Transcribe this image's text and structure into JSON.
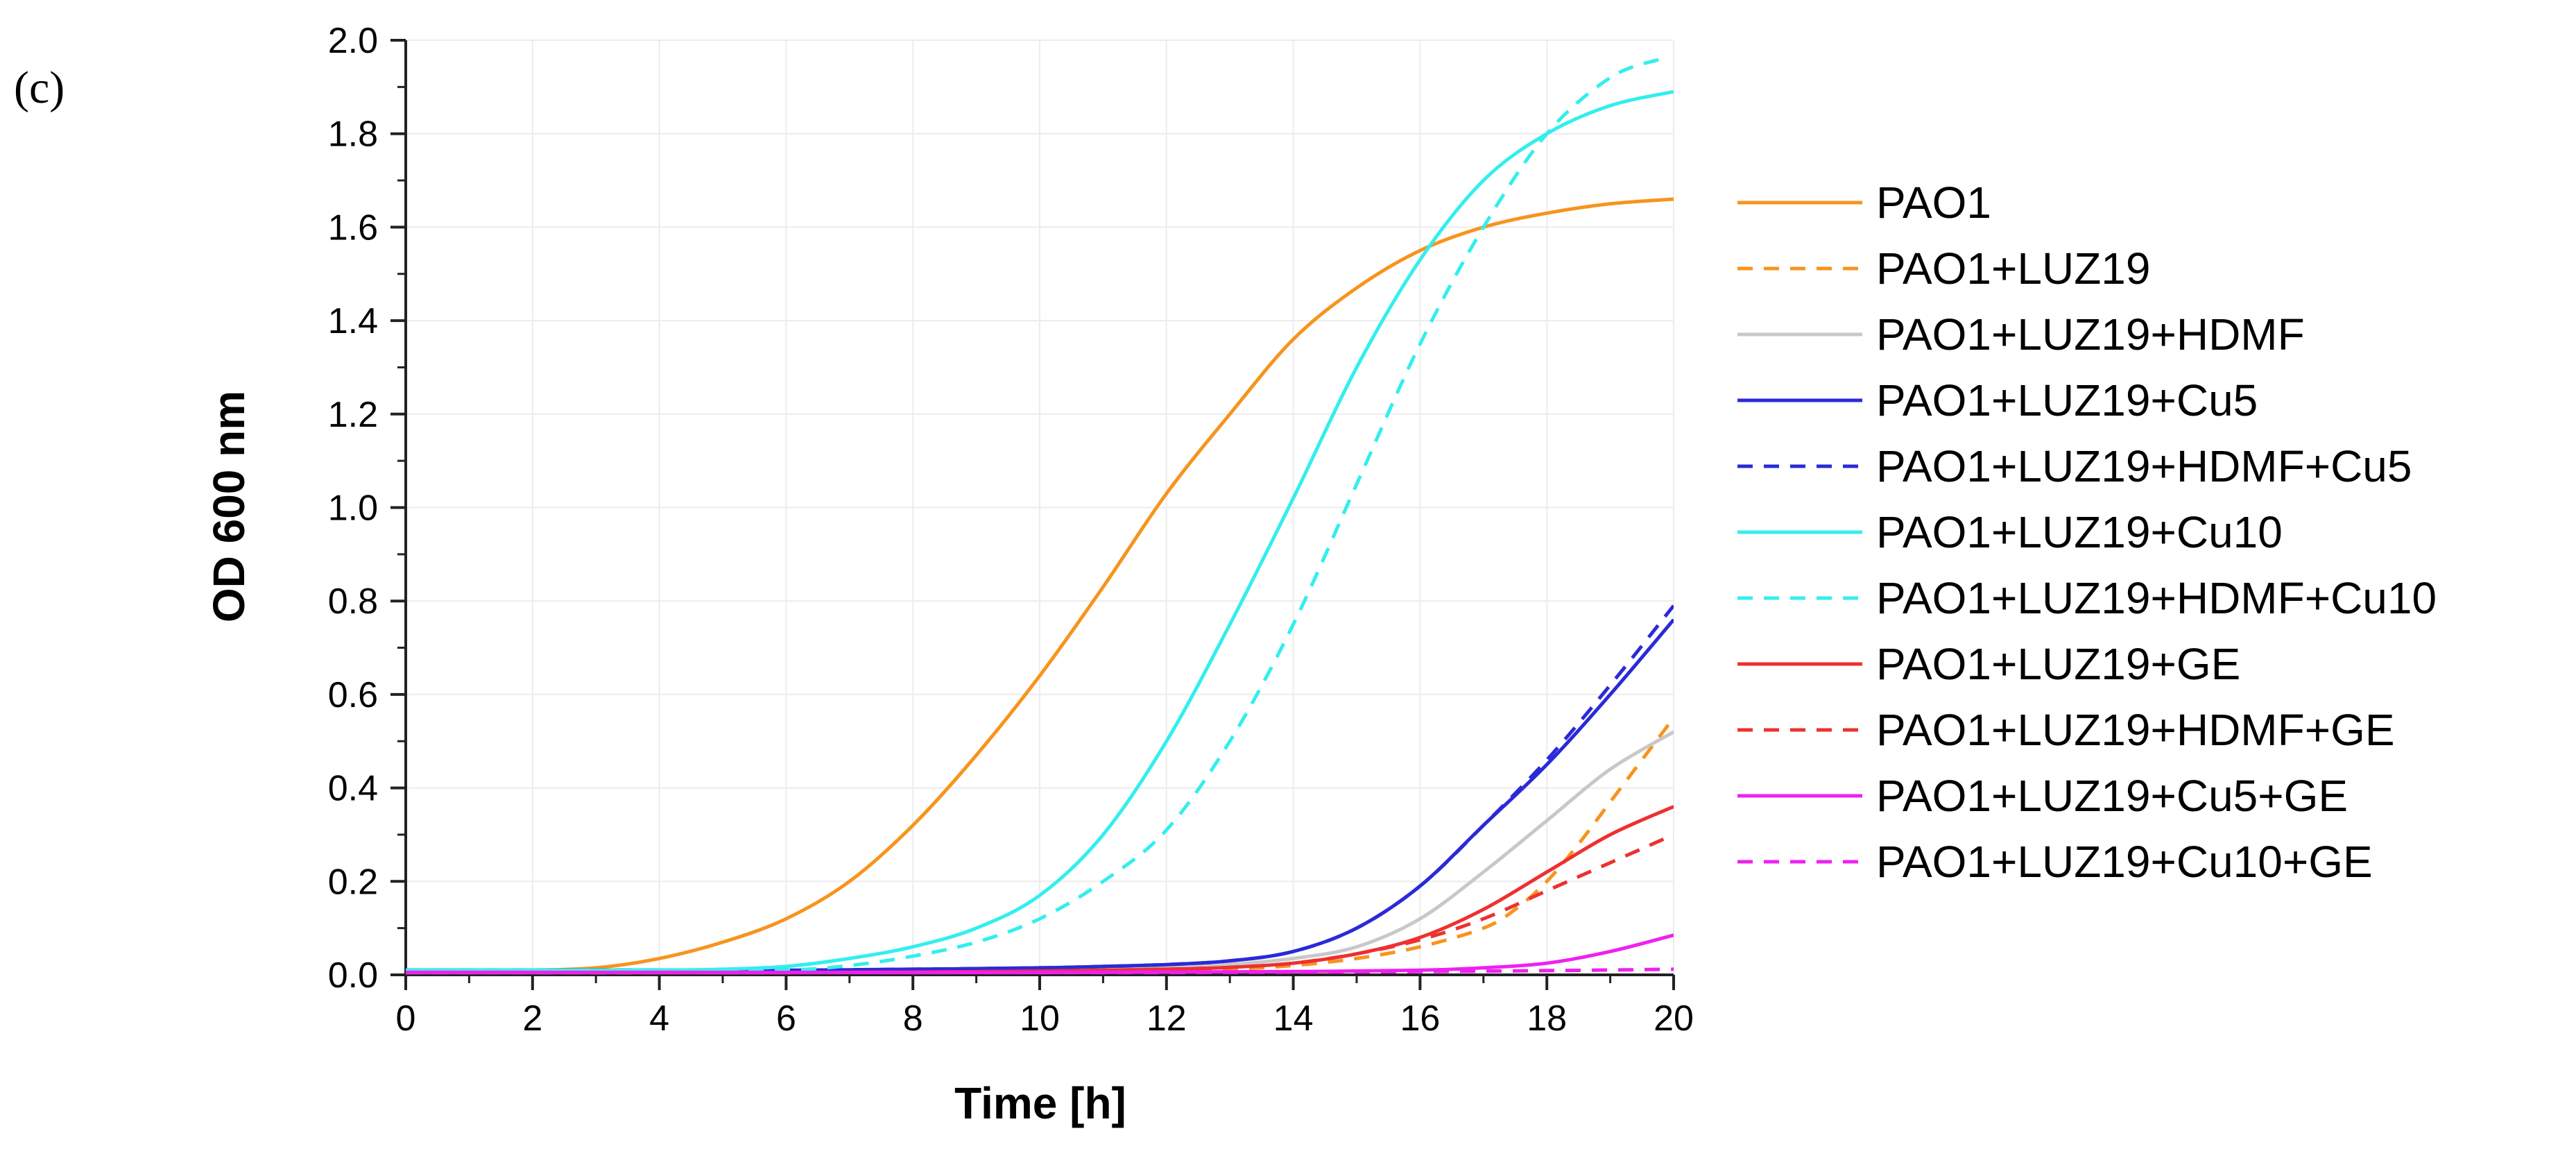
{
  "panel_label": "(c)",
  "chart_data": {
    "type": "line",
    "title": "",
    "xlabel": "Time [h]",
    "ylabel": "OD 600 nm",
    "xlim": [
      0,
      20
    ],
    "ylim": [
      0,
      2.0
    ],
    "xticks": [
      0,
      2,
      4,
      6,
      8,
      10,
      12,
      14,
      16,
      18,
      20
    ],
    "yticks": [
      0,
      0.2,
      0.4,
      0.6,
      0.8,
      1.0,
      1.2,
      1.4,
      1.6,
      1.8,
      2.0
    ],
    "xtick_labels": [
      "0",
      "2",
      "4",
      "6",
      "8",
      "10",
      "12",
      "14",
      "16",
      "18",
      "20"
    ],
    "ytick_labels": [
      "0.0",
      "0.2",
      "0.4",
      "0.6",
      "0.8",
      "1.0",
      "1.2",
      "1.4",
      "1.6",
      "1.8",
      "2.0"
    ],
    "grid": true,
    "legend_position": "right",
    "series": [
      {
        "name": "PAO1",
        "color": "#f7941d",
        "dash": "solid",
        "x": [
          0,
          1,
          2,
          3,
          4,
          5,
          6,
          7,
          8,
          9,
          10,
          11,
          12,
          13,
          14,
          15,
          16,
          17,
          18,
          19,
          20
        ],
        "y": [
          0.01,
          0.01,
          0.01,
          0.015,
          0.035,
          0.07,
          0.12,
          0.2,
          0.32,
          0.47,
          0.64,
          0.83,
          1.03,
          1.2,
          1.36,
          1.47,
          1.55,
          1.6,
          1.63,
          1.65,
          1.66
        ]
      },
      {
        "name": "PAO1+LUZ19",
        "color": "#f7941d",
        "dash": "dashed",
        "x": [
          0,
          2,
          4,
          6,
          8,
          10,
          12,
          13,
          14,
          15,
          16,
          17,
          17.5,
          18,
          18.5,
          19,
          19.5,
          20
        ],
        "y": [
          0.005,
          0.005,
          0.005,
          0.005,
          0.006,
          0.007,
          0.009,
          0.012,
          0.02,
          0.035,
          0.06,
          0.1,
          0.14,
          0.2,
          0.28,
          0.37,
          0.46,
          0.55
        ]
      },
      {
        "name": "PAO1+LUZ19+HDMF",
        "color": "#c8c8c8",
        "dash": "solid",
        "x": [
          0,
          2,
          4,
          6,
          8,
          10,
          12,
          13,
          14,
          15,
          16,
          17,
          18,
          19,
          20
        ],
        "y": [
          0.005,
          0.005,
          0.005,
          0.005,
          0.007,
          0.01,
          0.015,
          0.022,
          0.035,
          0.06,
          0.12,
          0.22,
          0.33,
          0.44,
          0.52
        ]
      },
      {
        "name": "PAO1+LUZ19+Cu5",
        "color": "#2a2ad9",
        "dash": "solid",
        "x": [
          0,
          2,
          4,
          6,
          8,
          10,
          11,
          12,
          13,
          14,
          15,
          16,
          17,
          18,
          19,
          20
        ],
        "y": [
          0.01,
          0.01,
          0.01,
          0.01,
          0.012,
          0.015,
          0.018,
          0.022,
          0.03,
          0.05,
          0.1,
          0.19,
          0.32,
          0.45,
          0.6,
          0.76
        ]
      },
      {
        "name": "PAO1+LUZ19+HDMF+Cu5",
        "color": "#2a2ad9",
        "dash": "dashed",
        "x": [
          0,
          2,
          4,
          6,
          8,
          10,
          11,
          12,
          13,
          14,
          15,
          16,
          17,
          18,
          19,
          20
        ],
        "y": [
          0.01,
          0.01,
          0.01,
          0.01,
          0.012,
          0.015,
          0.018,
          0.022,
          0.03,
          0.05,
          0.1,
          0.19,
          0.32,
          0.46,
          0.62,
          0.79
        ]
      },
      {
        "name": "PAO1+LUZ19+Cu10",
        "color": "#33eeee",
        "dash": "solid",
        "x": [
          0,
          2,
          4,
          5,
          6,
          7,
          8,
          9,
          10,
          11,
          12,
          13,
          14,
          15,
          16,
          17,
          18,
          19,
          20
        ],
        "y": [
          0.01,
          0.01,
          0.01,
          0.012,
          0.018,
          0.035,
          0.06,
          0.1,
          0.17,
          0.3,
          0.5,
          0.75,
          1.02,
          1.3,
          1.53,
          1.7,
          1.8,
          1.86,
          1.89
        ]
      },
      {
        "name": "PAO1+LUZ19+HDMF+Cu10",
        "color": "#33eeee",
        "dash": "dashed",
        "x": [
          0,
          2,
          4,
          6,
          7,
          8,
          9,
          10,
          11,
          12,
          13,
          14,
          15,
          16,
          17,
          18,
          19,
          19.8
        ],
        "y": [
          0.005,
          0.005,
          0.005,
          0.01,
          0.02,
          0.04,
          0.07,
          0.12,
          0.2,
          0.31,
          0.5,
          0.75,
          1.05,
          1.35,
          1.6,
          1.8,
          1.92,
          1.96
        ]
      },
      {
        "name": "PAO1+LUZ19+GE",
        "color": "#ee3030",
        "dash": "solid",
        "x": [
          0,
          2,
          4,
          6,
          8,
          10,
          12,
          13,
          14,
          15,
          16,
          17,
          18,
          19,
          20
        ],
        "y": [
          0.005,
          0.005,
          0.005,
          0.005,
          0.006,
          0.008,
          0.012,
          0.016,
          0.025,
          0.045,
          0.08,
          0.14,
          0.22,
          0.3,
          0.36
        ]
      },
      {
        "name": "PAO1+LUZ19+HDMF+GE",
        "color": "#ee3030",
        "dash": "dashed",
        "x": [
          0,
          2,
          4,
          6,
          8,
          10,
          12,
          13,
          14,
          15,
          16,
          17,
          18,
          19,
          20
        ],
        "y": [
          0.005,
          0.005,
          0.005,
          0.005,
          0.006,
          0.008,
          0.012,
          0.016,
          0.025,
          0.045,
          0.075,
          0.12,
          0.18,
          0.24,
          0.3
        ]
      },
      {
        "name": "PAO1+LUZ19+Cu5+GE",
        "color": "#f020f0",
        "dash": "solid",
        "x": [
          0,
          2,
          4,
          6,
          8,
          10,
          12,
          14,
          16,
          17,
          18,
          19,
          20
        ],
        "y": [
          0.005,
          0.005,
          0.005,
          0.005,
          0.005,
          0.005,
          0.006,
          0.007,
          0.01,
          0.015,
          0.025,
          0.05,
          0.085
        ]
      },
      {
        "name": "PAO1+LUZ19+Cu10+GE",
        "color": "#f020f0",
        "dash": "dashed",
        "x": [
          0,
          2,
          4,
          6,
          8,
          10,
          12,
          14,
          16,
          18,
          20
        ],
        "y": [
          0.005,
          0.005,
          0.005,
          0.005,
          0.005,
          0.005,
          0.005,
          0.006,
          0.007,
          0.009,
          0.012
        ]
      }
    ]
  }
}
